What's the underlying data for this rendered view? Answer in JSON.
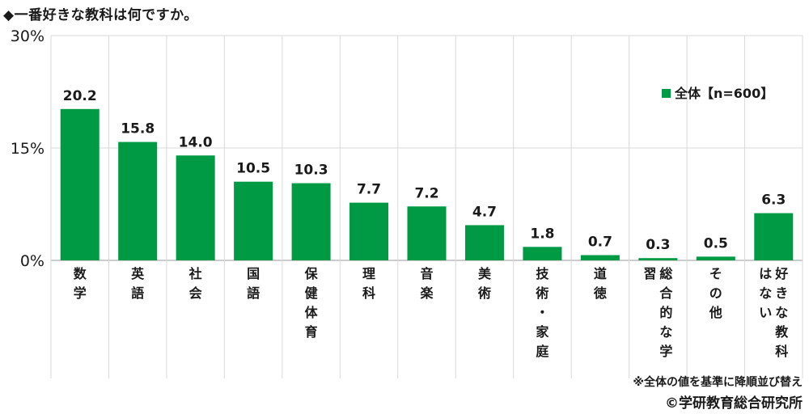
{
  "title": "◆一番好きな教科は何ですか。",
  "note": "※全体の値を基準に降順並び替え",
  "copyright": "©学研教育総合研究所",
  "colors": {
    "bar": "#009a44",
    "grid": "#d9d9d9",
    "axis": "#999999"
  },
  "chart_data": {
    "type": "bar",
    "categories": [
      "数学",
      "英語",
      "社会",
      "国語",
      "保健体育",
      "理科",
      "音楽",
      "美術",
      "技術・家庭",
      "道徳",
      "総合的な学習",
      "その他",
      "好きな教科はない"
    ],
    "series": [
      {
        "name": "全体【n=600】",
        "values": [
          20.2,
          15.8,
          14.0,
          10.5,
          10.3,
          7.7,
          7.2,
          4.7,
          1.8,
          0.7,
          0.3,
          0.5,
          6.3
        ]
      }
    ],
    "data_labels": [
      "20.2",
      "15.8",
      "14.0",
      "10.5",
      "10.3",
      "7.7",
      "7.2",
      "4.7",
      "1.8",
      "0.7",
      "0.3",
      "0.5",
      "6.3"
    ],
    "yticks": [
      "0%",
      "15%",
      "30%"
    ],
    "ylim": [
      0,
      30
    ],
    "legend_position": "top-right",
    "grid": true
  }
}
